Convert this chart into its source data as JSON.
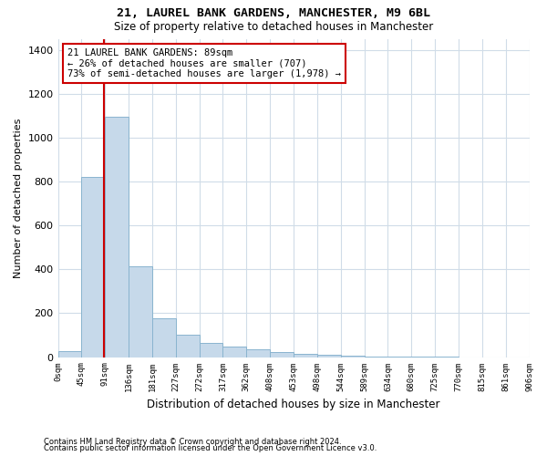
{
  "title": "21, LAUREL BANK GARDENS, MANCHESTER, M9 6BL",
  "subtitle": "Size of property relative to detached houses in Manchester",
  "xlabel": "Distribution of detached houses by size in Manchester",
  "ylabel": "Number of detached properties",
  "bar_color": "#c6d9ea",
  "bar_edge_color": "#8ab4cf",
  "background_color": "#ffffff",
  "grid_color": "#d0dce8",
  "annotation_text": "21 LAUREL BANK GARDENS: 89sqm\n← 26% of detached houses are smaller (707)\n73% of semi-detached houses are larger (1,978) →",
  "vline_color": "#cc0000",
  "annotation_box_color": "#cc0000",
  "footnote1": "Contains HM Land Registry data © Crown copyright and database right 2024.",
  "footnote2": "Contains public sector information licensed under the Open Government Licence v3.0.",
  "bin_labels": [
    "0sqm",
    "45sqm",
    "91sqm",
    "136sqm",
    "181sqm",
    "227sqm",
    "272sqm",
    "317sqm",
    "362sqm",
    "408sqm",
    "453sqm",
    "498sqm",
    "544sqm",
    "589sqm",
    "634sqm",
    "680sqm",
    "725sqm",
    "770sqm",
    "815sqm",
    "861sqm",
    "906sqm"
  ],
  "counts": [
    28,
    820,
    1095,
    415,
    175,
    100,
    65,
    50,
    35,
    25,
    15,
    10,
    5,
    3,
    2,
    1,
    1,
    0,
    0,
    0
  ],
  "ylim": [
    0,
    1450
  ],
  "yticks": [
    0,
    200,
    400,
    600,
    800,
    1000,
    1200,
    1400
  ],
  "vline_bin": 1.957
}
